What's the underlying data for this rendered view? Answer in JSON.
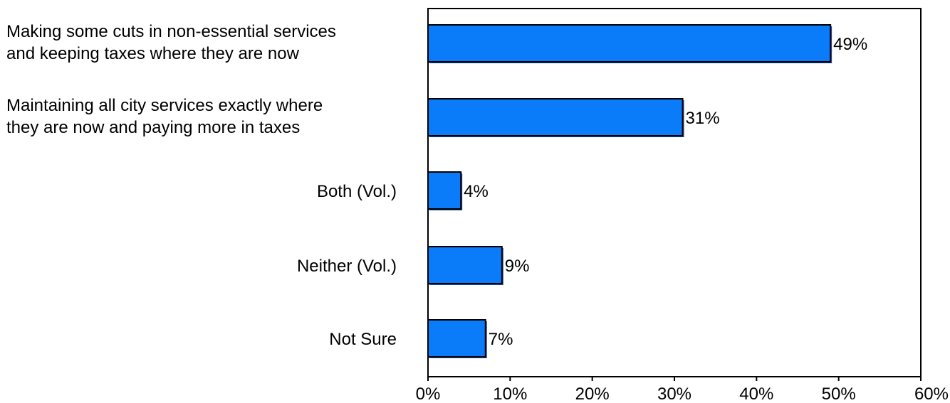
{
  "chart_data": {
    "type": "bar",
    "orientation": "horizontal",
    "categories": [
      [
        "Making some cuts in non-essential services",
        "and keeping taxes where they are now"
      ],
      [
        "Maintaining all city services exactly where",
        "they are now and paying more in taxes"
      ],
      [
        "Both (Vol.)"
      ],
      [
        "Neither (Vol.)"
      ],
      [
        "Not Sure"
      ]
    ],
    "values": [
      49,
      31,
      4,
      9,
      7
    ],
    "data_labels": [
      "49%",
      "31%",
      "4%",
      "9%",
      "7%"
    ],
    "x_ticks": [
      0,
      10,
      20,
      30,
      40,
      50,
      60
    ],
    "x_tick_labels": [
      "0%",
      "10%",
      "20%",
      "30%",
      "40%",
      "50%",
      "60%"
    ],
    "xlim": [
      0,
      60
    ],
    "title": "",
    "xlabel": "",
    "ylabel": "",
    "grid": false,
    "legend": "none",
    "colors": {
      "bar_fill": "#0a7cfa",
      "bar_shadow": "#1f4fa8",
      "bar_edge": "#000000",
      "axis": "#000000"
    }
  }
}
